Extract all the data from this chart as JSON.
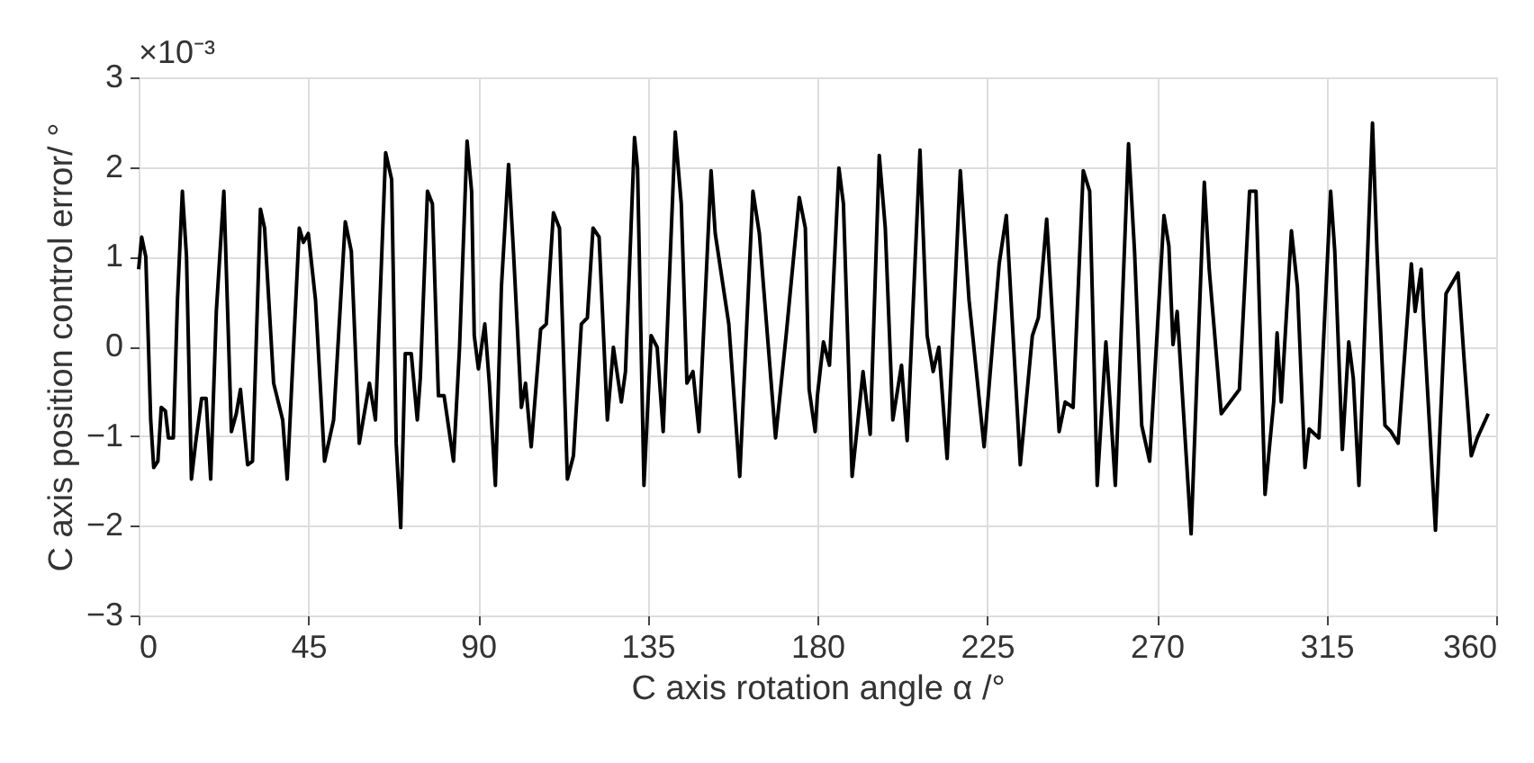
{
  "chart_data": {
    "type": "line",
    "xlabel": "C axis rotation angle α /°",
    "ylabel": "C axis position control error/ °",
    "annotations": [
      "×10⁻³"
    ],
    "xlim": [
      0,
      360
    ],
    "xticks": [
      0,
      45,
      90,
      135,
      180,
      225,
      270,
      315,
      360
    ],
    "ylim": [
      -3,
      3
    ],
    "yticks": [
      -3,
      -2,
      -1,
      0,
      1,
      2,
      3
    ],
    "grid": true,
    "line_style": "solid",
    "marker": "none",
    "series": [
      {
        "color": "#000000",
        "x": [
          0,
          0.8,
          1.9,
          3.2,
          4.0,
          5.1,
          6.0,
          7.1,
          7.9,
          9.2,
          10.3,
          11.6,
          12.7,
          14.0,
          15.1,
          16.7,
          17.9,
          19.1,
          20.6,
          22.6,
          24.6,
          25.9,
          27.0,
          28.9,
          30.2,
          32.3,
          33.4,
          35.8,
          38.2,
          39.4,
          42.6,
          43.7,
          45.0,
          46.9,
          49.3,
          51.7,
          54.8,
          56.4,
          58.5,
          61.2,
          62.8,
          65.5,
          67.1,
          68.3,
          69.5,
          70.7,
          72.3,
          73.9,
          74.7,
          76.6,
          77.9,
          79.5,
          81.0,
          83.5,
          85.1,
          87.1,
          88.3,
          89.0,
          90.1,
          91.8,
          93.0,
          94.6,
          96.2,
          98.1,
          99.4,
          101.5,
          102.6,
          104.1,
          106.6,
          108.1,
          110.0,
          111.6,
          113.7,
          115.3,
          117.4,
          119.0,
          120.5,
          122.1,
          124.3,
          125.9,
          128.0,
          129.1,
          131.5,
          132.3,
          134.0,
          135.9,
          137.5,
          139.1,
          142.3,
          143.9,
          145.4,
          147.0,
          148.6,
          151.8,
          152.9,
          156.5,
          159.4,
          162.9,
          164.6,
          168.9,
          171.7,
          175.2,
          176.8,
          177.8,
          179.4,
          180.0,
          181.6,
          183.2,
          185.7,
          186.9,
          189.2,
          192.1,
          194.0,
          196.4,
          198.0,
          200.0,
          202.3,
          203.8,
          207.2,
          209.1,
          210.7,
          212.2,
          214.4,
          217.9,
          220.2,
          224.2,
          228.2,
          230.1,
          233.8,
          237.0,
          238.6,
          240.8,
          244.1,
          245.7,
          247.8,
          250.5,
          252.2,
          254.2,
          256.5,
          257.7,
          259.0,
          262.5,
          264.1,
          266.0,
          268.1,
          271.9,
          273.2,
          274.3,
          275.4,
          279.1,
          280.7,
          282.6,
          283.9,
          287.1,
          291.9,
          294.6,
          296.3,
          298.7,
          301.0,
          301.9,
          303.0,
          305.7,
          307.3,
          309.3,
          310.4,
          313.0,
          316.1,
          317.2,
          319.2,
          320.9,
          322.1,
          323.6,
          327.2,
          328.4,
          330.5,
          332.1,
          334.0,
          337.5,
          338.5,
          340.1,
          340.7,
          343.9,
          346.7,
          349.9,
          351.5,
          353.4,
          355.0,
          357.9
        ],
        "values": [
          0.86,
          1.22,
          1.0,
          -0.82,
          -1.35,
          -1.28,
          -0.68,
          -0.72,
          -1.02,
          -1.02,
          0.52,
          1.73,
          1.0,
          -1.48,
          -1.08,
          -0.58,
          -0.58,
          -1.48,
          0.39,
          1.73,
          -0.95,
          -0.75,
          -0.48,
          -1.32,
          -1.28,
          1.53,
          1.32,
          -0.41,
          -0.82,
          -1.48,
          1.32,
          1.16,
          1.26,
          0.52,
          -1.28,
          -0.82,
          1.39,
          1.06,
          -1.08,
          -0.41,
          -0.82,
          2.16,
          1.86,
          -1.08,
          -2.02,
          -0.08,
          -0.08,
          -0.82,
          -0.35,
          1.73,
          1.59,
          -0.55,
          -0.55,
          -1.28,
          -0.01,
          2.29,
          1.73,
          0.12,
          -0.25,
          0.25,
          -0.41,
          -1.55,
          0.66,
          2.03,
          1.06,
          -0.68,
          -0.41,
          -1.12,
          0.19,
          0.25,
          1.49,
          1.32,
          -1.48,
          -1.22,
          0.25,
          0.32,
          1.32,
          1.22,
          -0.82,
          -0.01,
          -0.62,
          -0.28,
          2.33,
          1.99,
          -1.55,
          0.12,
          -0.01,
          -0.95,
          2.39,
          1.59,
          -0.41,
          -0.28,
          -0.95,
          1.96,
          1.26,
          0.25,
          -1.45,
          1.73,
          1.26,
          -1.02,
          0.12,
          1.66,
          1.32,
          -0.48,
          -0.95,
          -0.55,
          0.05,
          -0.21,
          1.99,
          1.59,
          -1.45,
          -0.28,
          -0.98,
          2.13,
          1.32,
          -0.82,
          -0.21,
          -1.05,
          2.19,
          0.12,
          -0.28,
          -0.01,
          -1.25,
          1.96,
          0.52,
          -1.12,
          0.92,
          1.46,
          -1.32,
          0.12,
          0.32,
          1.42,
          -0.95,
          -0.62,
          -0.68,
          1.96,
          1.73,
          -1.55,
          0.05,
          -0.68,
          -1.55,
          2.26,
          1.06,
          -0.88,
          -1.28,
          1.46,
          1.12,
          0.02,
          0.39,
          -2.09,
          -0.28,
          1.83,
          0.86,
          -0.75,
          -0.48,
          1.73,
          1.73,
          -1.65,
          -0.62,
          0.15,
          -0.62,
          1.29,
          0.66,
          -1.35,
          -0.92,
          -1.02,
          1.73,
          1.06,
          -1.15,
          0.05,
          -0.35,
          -1.55,
          2.49,
          1.06,
          -0.88,
          -0.95,
          -1.08,
          0.92,
          0.39,
          0.86,
          0.32,
          -2.05,
          0.59,
          0.82,
          -0.15,
          -1.22,
          -1.02,
          -0.75
        ]
      }
    ]
  }
}
